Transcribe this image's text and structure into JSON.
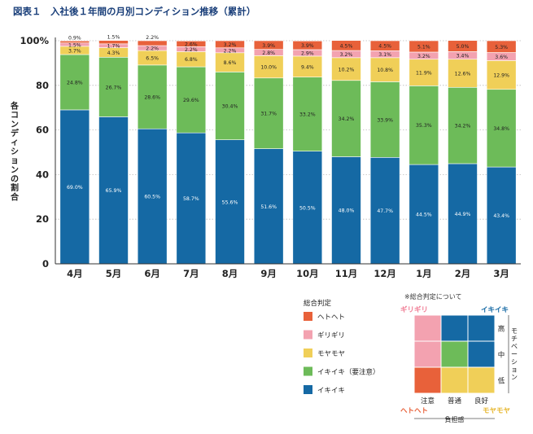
{
  "chart_data": {
    "type": "bar",
    "stacked": true,
    "title": "図表１　入社後１年間の月別コンディション推移（累計）",
    "ylabel": "各コンディションの割合",
    "xlabel": "",
    "ylim": [
      0,
      100
    ],
    "y_ticks": [
      "0",
      "20",
      "40",
      "60",
      "80",
      "100%"
    ],
    "categories": [
      "4月",
      "5月",
      "6月",
      "7月",
      "8月",
      "9月",
      "10月",
      "11月",
      "12月",
      "1月",
      "2月",
      "3月"
    ],
    "series": [
      {
        "name": "イキイキ",
        "color": "#1569a4",
        "values": [
          69.0,
          65.9,
          60.5,
          58.7,
          55.6,
          51.6,
          50.5,
          48.0,
          47.7,
          44.5,
          44.9,
          43.4
        ],
        "labels": [
          "69.0%",
          "65.9%",
          "60.5%",
          "58.7%",
          "55.6%",
          "51.6%",
          "50.5%",
          "48.0%",
          "47.7%",
          "44.5%",
          "44.9%",
          "43.4%"
        ]
      },
      {
        "name": "イキイキ（要注意）",
        "color": "#6dbb59",
        "values": [
          24.8,
          26.7,
          28.6,
          29.6,
          30.4,
          31.7,
          33.2,
          34.2,
          33.9,
          35.3,
          34.2,
          34.8
        ],
        "labels": [
          "24.8%",
          "26.7%",
          "28.6%",
          "29.6%",
          "30.4%",
          "31.7%",
          "33.2%",
          "34.2%",
          "33.9%",
          "35.3%",
          "34.2%",
          "34.8%"
        ]
      },
      {
        "name": "モヤモヤ",
        "color": "#f0cf58",
        "values": [
          3.7,
          4.3,
          6.5,
          6.8,
          8.6,
          10.0,
          9.4,
          10.2,
          10.8,
          11.9,
          12.6,
          12.9
        ],
        "labels": [
          "3.7%",
          "4.3%",
          "6.5%",
          "6.8%",
          "8.6%",
          "10.0%",
          "9.4%",
          "10.2%",
          "10.8%",
          "11.9%",
          "12.6%",
          "12.9%"
        ]
      },
      {
        "name": "ギリギリ",
        "color": "#f3a2b0",
        "values": [
          1.5,
          1.7,
          2.2,
          2.2,
          2.2,
          2.8,
          2.9,
          3.2,
          3.1,
          3.2,
          3.4,
          3.6
        ],
        "labels": [
          "1.5%",
          "1.7%",
          "2.2%",
          "2.2%",
          "2.2%",
          "2.8%",
          "2.9%",
          "3.2%",
          "3.1%",
          "3.2%",
          "3.4%",
          "3.6%"
        ]
      },
      {
        "name": "ヘトヘト",
        "color": "#e8613a",
        "values": [
          0.9,
          1.5,
          2.2,
          2.6,
          3.2,
          3.9,
          3.9,
          4.5,
          4.5,
          5.1,
          5.0,
          5.3
        ],
        "labels": [
          "0.9%",
          "1.5%",
          "2.2%",
          "2.6%",
          "3.2%",
          "3.9%",
          "3.9%",
          "4.5%",
          "4.5%",
          "5.1%",
          "5.0%",
          "5.3%"
        ]
      }
    ],
    "legend": {
      "title": "総合判定",
      "position": "bottom-center",
      "items": [
        {
          "label": "ヘトヘト",
          "color": "#e8613a"
        },
        {
          "label": "ギリギリ",
          "color": "#f3a2b0"
        },
        {
          "label": "モヤモヤ",
          "color": "#f0cf58"
        },
        {
          "label": "イキイキ（要注意）",
          "color": "#6dbb59"
        },
        {
          "label": "イキイキ",
          "color": "#1569a4"
        }
      ]
    },
    "matrix": {
      "title": "※総合判定について",
      "corner_labels": {
        "top_left": {
          "text": "ギリギリ",
          "color": "#f07c94"
        },
        "top_right": {
          "text": "イキイキ",
          "color": "#1569a4"
        },
        "bottom_left": {
          "text": "ヘトヘト",
          "color": "#e8613a"
        },
        "bottom_right": {
          "text": "モヤモヤ",
          "color": "#e6b52a"
        }
      },
      "col_labels": [
        "注意",
        "普通",
        "良好"
      ],
      "row_labels": [
        "高",
        "中",
        "低"
      ],
      "x_axis_label": "負担感",
      "y_axis_label": "モチベーション",
      "cells": [
        [
          "#f3a2b0",
          "#1569a4",
          "#1569a4"
        ],
        [
          "#f3a2b0",
          "#6dbb59",
          "#1569a4"
        ],
        [
          "#e8613a",
          "#f0cf58",
          "#f0cf58"
        ]
      ]
    }
  }
}
